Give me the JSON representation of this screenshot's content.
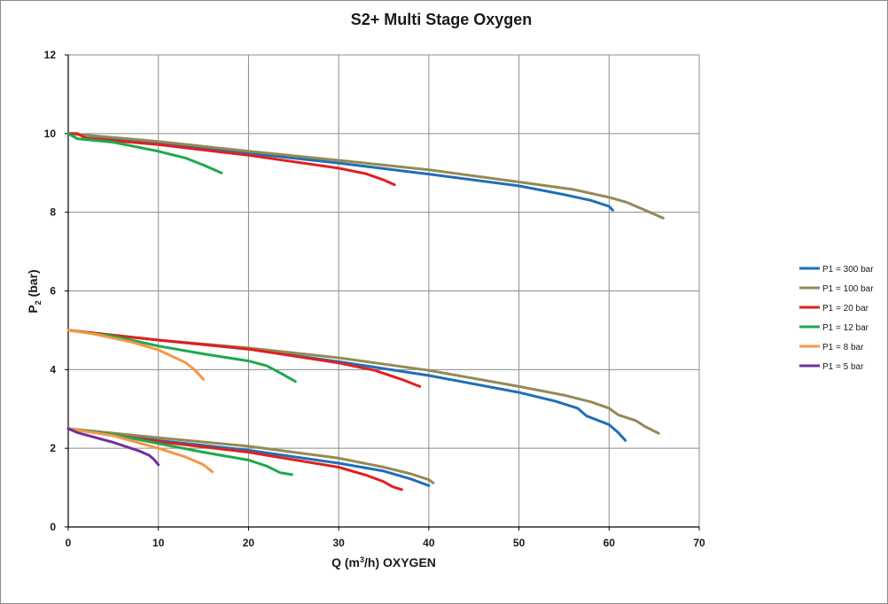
{
  "chart_data": {
    "type": "line",
    "title": "S2+ Multi Stage Oxygen",
    "xlabel": {
      "pre": "Q (m",
      "sup": "3",
      "post": "/h) OXYGEN"
    },
    "ylabel": {
      "pre": "P",
      "sub": "2",
      "post": " (bar)"
    },
    "xlim": [
      0,
      70
    ],
    "ylim": [
      0,
      12
    ],
    "xticks": [
      "0",
      "10",
      "20",
      "30",
      "40",
      "50",
      "60",
      "70"
    ],
    "yticks": [
      "0",
      "2",
      "4",
      "6",
      "8",
      "10",
      "12"
    ],
    "grid": true,
    "legend_position": "right",
    "series": [
      {
        "name": "P1 = 300 bar",
        "color": "#1f6fb4",
        "curves": [
          [
            [
              0,
              10
            ],
            [
              10,
              9.75
            ],
            [
              20,
              9.5
            ],
            [
              30,
              9.25
            ],
            [
              40,
              8.97
            ],
            [
              50,
              8.67
            ],
            [
              55,
              8.45
            ],
            [
              58,
              8.3
            ],
            [
              60,
              8.15
            ],
            [
              60.4,
              8.05
            ]
          ],
          [
            [
              0,
              5
            ],
            [
              10,
              4.75
            ],
            [
              20,
              4.52
            ],
            [
              30,
              4.2
            ],
            [
              40,
              3.85
            ],
            [
              50,
              3.42
            ],
            [
              54,
              3.2
            ],
            [
              56.5,
              3.02
            ],
            [
              57.5,
              2.82
            ],
            [
              60,
              2.6
            ],
            [
              61,
              2.4
            ],
            [
              61.8,
              2.2
            ]
          ],
          [
            [
              0,
              2.5
            ],
            [
              10,
              2.2
            ],
            [
              20,
              1.95
            ],
            [
              30,
              1.62
            ],
            [
              35,
              1.42
            ],
            [
              38,
              1.22
            ],
            [
              40,
              1.05
            ]
          ]
        ]
      },
      {
        "name": "P1 = 100 bar",
        "color": "#948a54",
        "curves": [
          [
            [
              0,
              10
            ],
            [
              10,
              9.8
            ],
            [
              20,
              9.55
            ],
            [
              30,
              9.32
            ],
            [
              40,
              9.08
            ],
            [
              50,
              8.77
            ],
            [
              56,
              8.58
            ],
            [
              60,
              8.38
            ],
            [
              62,
              8.25
            ],
            [
              64,
              8.05
            ],
            [
              66,
              7.85
            ]
          ],
          [
            [
              0,
              5
            ],
            [
              10,
              4.75
            ],
            [
              20,
              4.55
            ],
            [
              30,
              4.3
            ],
            [
              40,
              3.98
            ],
            [
              50,
              3.57
            ],
            [
              55,
              3.35
            ],
            [
              58,
              3.18
            ],
            [
              60,
              3.02
            ],
            [
              61,
              2.85
            ],
            [
              63,
              2.7
            ],
            [
              64,
              2.55
            ],
            [
              65.5,
              2.38
            ]
          ],
          [
            [
              0,
              2.5
            ],
            [
              10,
              2.27
            ],
            [
              20,
              2.05
            ],
            [
              30,
              1.75
            ],
            [
              35,
              1.52
            ],
            [
              38,
              1.35
            ],
            [
              40,
              1.2
            ],
            [
              40.5,
              1.12
            ]
          ]
        ]
      },
      {
        "name": "P1 = 20 bar",
        "color": "#e02020",
        "curves": [
          [
            [
              0,
              10
            ],
            [
              1,
              10
            ],
            [
              2,
              9.88
            ],
            [
              10,
              9.72
            ],
            [
              20,
              9.45
            ],
            [
              30,
              9.12
            ],
            [
              33,
              8.98
            ],
            [
              35,
              8.82
            ],
            [
              36.2,
              8.7
            ]
          ],
          [
            [
              0,
              5
            ],
            [
              10,
              4.75
            ],
            [
              20,
              4.52
            ],
            [
              30,
              4.17
            ],
            [
              34,
              3.98
            ],
            [
              37,
              3.75
            ],
            [
              39,
              3.57
            ]
          ],
          [
            [
              0,
              2.5
            ],
            [
              10,
              2.17
            ],
            [
              20,
              1.9
            ],
            [
              30,
              1.52
            ],
            [
              33,
              1.32
            ],
            [
              35,
              1.15
            ],
            [
              36,
              1.02
            ],
            [
              37,
              0.95
            ]
          ]
        ]
      },
      {
        "name": "P1 = 12 bar",
        "color": "#1ea84c",
        "curves": [
          [
            [
              0,
              10
            ],
            [
              1,
              9.87
            ],
            [
              5,
              9.78
            ],
            [
              10,
              9.55
            ],
            [
              13,
              9.38
            ],
            [
              15,
              9.2
            ],
            [
              17,
              9.0
            ]
          ],
          [
            [
              0,
              5
            ],
            [
              5,
              4.85
            ],
            [
              10,
              4.6
            ],
            [
              15,
              4.4
            ],
            [
              20,
              4.22
            ],
            [
              22,
              4.1
            ],
            [
              23.5,
              3.92
            ],
            [
              25.2,
              3.7
            ]
          ],
          [
            [
              0,
              2.5
            ],
            [
              5,
              2.35
            ],
            [
              10,
              2.12
            ],
            [
              15,
              1.9
            ],
            [
              20,
              1.7
            ],
            [
              22,
              1.55
            ],
            [
              23.5,
              1.38
            ],
            [
              24.8,
              1.33
            ]
          ]
        ]
      },
      {
        "name": "P1 = 8 bar",
        "color": "#f79646",
        "curves": [
          [
            [
              0,
              5
            ],
            [
              3,
              4.9
            ],
            [
              7,
              4.7
            ],
            [
              10,
              4.5
            ],
            [
              13,
              4.18
            ],
            [
              14,
              4.0
            ],
            [
              15,
              3.75
            ]
          ],
          [
            [
              0,
              2.5
            ],
            [
              5,
              2.32
            ],
            [
              10,
              2.0
            ],
            [
              13,
              1.78
            ],
            [
              15,
              1.58
            ],
            [
              16,
              1.4
            ]
          ]
        ]
      },
      {
        "name": "P1 = 5 bar",
        "color": "#7030a0",
        "curves": [
          [
            [
              0,
              2.5
            ],
            [
              1,
              2.4
            ],
            [
              5,
              2.15
            ],
            [
              8,
              1.92
            ],
            [
              9,
              1.82
            ],
            [
              9.5,
              1.72
            ],
            [
              10,
              1.58
            ]
          ]
        ]
      }
    ]
  }
}
